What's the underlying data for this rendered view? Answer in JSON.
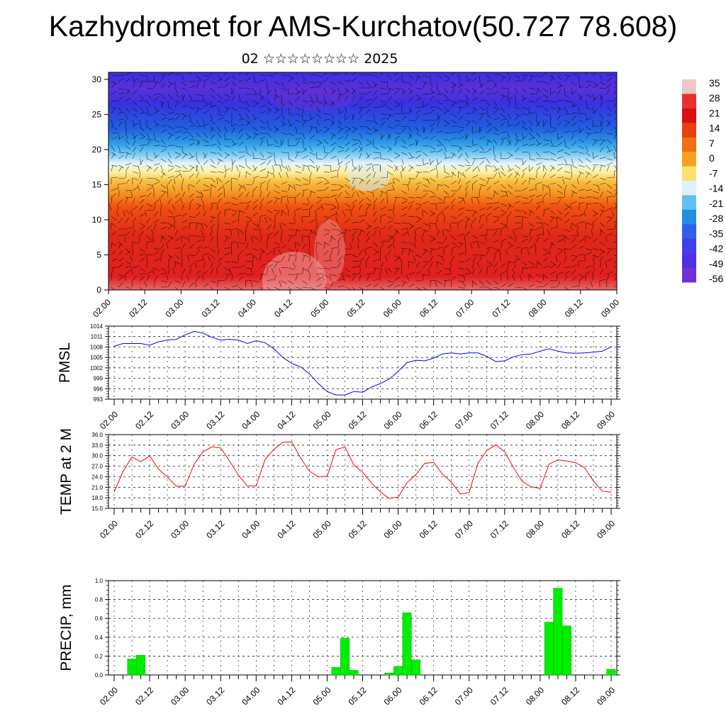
{
  "header": {
    "title": "Kazhydromet for AMS-Kurchatov(50.727 78.608)",
    "subtitle": "02 ☆☆☆☆☆☆☆☆ 2025"
  },
  "colors": {
    "pmsl_line": "#0000ff",
    "temp_line": "#ff0000",
    "precip_bar": "#00ee00",
    "precip_bar_edge": "#00aa00"
  },
  "time_axis": {
    "labels": [
      "02.00",
      "02.12",
      "03.00",
      "03.12",
      "04.00",
      "04.12",
      "05.00",
      "05.12",
      "06.00",
      "06.12",
      "07.00",
      "07.12",
      "08.00",
      "08.12",
      "09.00"
    ]
  },
  "chart_data": [
    {
      "type": "heatmap",
      "title": "Kazhydromet for AMS-Kurchatov(50.727 78.608)",
      "subtitle": "02 ☆☆☆☆☆☆☆☆ 2025",
      "x_tick_labels": [
        "02.00",
        "02.12",
        "03.00",
        "03.12",
        "04.00",
        "04.12",
        "05.00",
        "05.12",
        "06.00",
        "06.12",
        "07.00",
        "07.12",
        "08.00",
        "08.12",
        "09.00"
      ],
      "y_ticks": [
        0,
        5,
        10,
        15,
        20,
        25,
        30
      ],
      "ylim": [
        0,
        31
      ],
      "colorbar_labels": [
        "35",
        "28",
        "21",
        "14",
        "7",
        "0",
        "-7",
        "-14",
        "-21",
        "-28",
        "-35",
        "-42",
        "-49",
        "-56"
      ],
      "colorbar_colors": [
        "#f0c8c8",
        "#e83030",
        "#d81010",
        "#e84010",
        "#f07010",
        "#f8a020",
        "#fce070",
        "#e0f0f8",
        "#60c0f0",
        "#2090e0",
        "#3060e8",
        "#4040e8",
        "#5030e0",
        "#7030d8"
      ],
      "overlay": "wind barbs"
    },
    {
      "type": "line",
      "ylabel": "PMSL",
      "y_ticks": [
        993,
        996,
        999,
        1002,
        1005,
        1008,
        1011,
        1014
      ],
      "ylim": [
        993,
        1014
      ],
      "x_tick_labels": [
        "02.00",
        "02.12",
        "03.00",
        "03.12",
        "04.00",
        "04.12",
        "05.00",
        "05.12",
        "06.00",
        "06.12",
        "07.00",
        "07.12",
        "08.00",
        "08.12",
        "09.00"
      ],
      "series": [
        {
          "values": [
            1008.2,
            1009,
            1009,
            1009,
            1008.5,
            1009.5,
            1010,
            1010.2,
            1011.5,
            1012.5,
            1012,
            1010.8,
            1010,
            1010.2,
            1010,
            1009,
            1009.8,
            1009.2,
            1007.5,
            1005,
            1003.3,
            1002.3,
            1000.3,
            997.5,
            995.2,
            994.2,
            994.2,
            995.2,
            995,
            996.5,
            997.5,
            998.8,
            1001,
            1003.5,
            1004.2,
            1004,
            1004.8,
            1006,
            1006.3,
            1006,
            1006.3,
            1006.3,
            1005.3,
            1003.8,
            1004,
            1005.2,
            1005.8,
            1006,
            1006.8,
            1007.5,
            1006.8,
            1006.3,
            1006.2,
            1006.3,
            1006.5,
            1006.8,
            1008
          ]
        }
      ]
    },
    {
      "type": "line",
      "ylabel": "TEMP at 2 M",
      "y_ticks": [
        "15.0",
        "18.0",
        "21.0",
        "24.0",
        "27.0",
        "30.0",
        "33.0",
        "36.0"
      ],
      "ylim": [
        15,
        36
      ],
      "x_tick_labels": [
        "02.00",
        "02.12",
        "03.00",
        "03.12",
        "04.00",
        "04.12",
        "05.00",
        "05.12",
        "06.00",
        "06.12",
        "07.00",
        "07.12",
        "08.00",
        "08.12",
        "09.00"
      ],
      "series": [
        {
          "values": [
            19.6,
            25.5,
            29.6,
            28.3,
            29.9,
            26.2,
            23.9,
            21.3,
            21.3,
            27.5,
            31.1,
            32.5,
            32.2,
            28.5,
            24.5,
            21.4,
            21.4,
            28.9,
            31.8,
            33.8,
            33.9,
            29.4,
            25.6,
            24.0,
            24.1,
            31.7,
            32.5,
            27.4,
            25.3,
            22.2,
            19.7,
            17.8,
            18.2,
            22.3,
            24.6,
            27.8,
            28.1,
            24.7,
            22.5,
            19.1,
            19.5,
            27.9,
            31.5,
            33.1,
            31.1,
            26.6,
            22.6,
            21.1,
            20.7,
            27.6,
            28.8,
            28.5,
            28.0,
            26.6,
            22.8,
            19.9,
            19.6
          ]
        }
      ]
    },
    {
      "type": "bar",
      "ylabel": "PRECIP, mm",
      "y_ticks": [
        "0.0",
        "0.2",
        "0.4",
        "0.6",
        "0.8",
        "1.0"
      ],
      "ylim": [
        0,
        1.0
      ],
      "x_tick_labels": [
        "02.00",
        "02.12",
        "03.00",
        "03.12",
        "04.00",
        "04.12",
        "05.00",
        "05.12",
        "06.00",
        "06.12",
        "07.00",
        "07.12",
        "08.00",
        "08.12",
        "09.00"
      ],
      "series": [
        {
          "values": [
            0,
            0,
            0.17,
            0.21,
            0,
            0,
            0,
            0,
            0,
            0,
            0,
            0,
            0,
            0,
            0,
            0,
            0,
            0,
            0,
            0,
            0,
            0,
            0,
            0,
            0,
            0.08,
            0.39,
            0.05,
            0,
            0,
            0,
            0.02,
            0.09,
            0.66,
            0.16,
            0,
            0,
            0,
            0,
            0,
            0,
            0,
            0,
            0,
            0,
            0,
            0,
            0,
            0,
            0.56,
            0.92,
            0.52,
            0,
            0,
            0,
            0,
            0.06
          ]
        }
      ]
    }
  ]
}
